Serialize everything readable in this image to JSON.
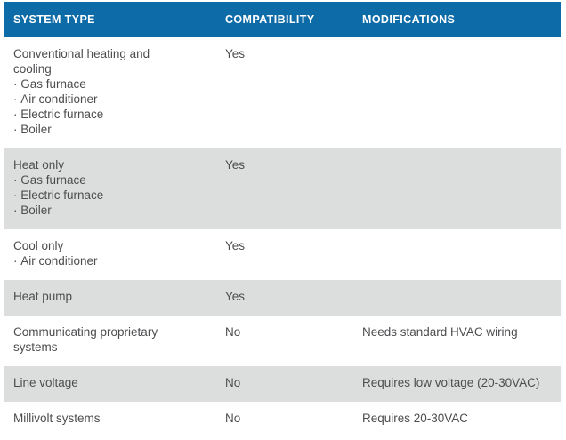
{
  "table": {
    "columns": [
      {
        "label": "SYSTEM TYPE"
      },
      {
        "label": "COMPATIBILITY"
      },
      {
        "label": "MODIFICATIONS"
      }
    ],
    "rows": [
      {
        "system": "Conventional heating and cooling",
        "items": [
          "Gas furnace",
          "Air conditioner",
          "Electric furnace",
          "Boiler"
        ],
        "compatibility": "Yes",
        "modifications": ""
      },
      {
        "system": "Heat only",
        "items": [
          "Gas furnace",
          "Electric furnace",
          "Boiler"
        ],
        "compatibility": "Yes",
        "modifications": ""
      },
      {
        "system": "Cool only",
        "items": [
          "Air conditioner"
        ],
        "compatibility": "Yes",
        "modifications": ""
      },
      {
        "system": "Heat pump",
        "items": [],
        "compatibility": "Yes",
        "modifications": ""
      },
      {
        "system": "Communicating proprietary systems",
        "items": [],
        "compatibility": "No",
        "modifications": "Needs standard HVAC wiring"
      },
      {
        "system": "Line voltage",
        "items": [],
        "compatibility": "No",
        "modifications": "Requires low voltage (20-30VAC)"
      },
      {
        "system": "Millivolt systems",
        "items": [],
        "compatibility": "No",
        "modifications": "Requires 20-30VAC"
      }
    ],
    "colors": {
      "header_bg": "#0d6ba8",
      "header_text": "#ffffff",
      "row_bg": "#ffffff",
      "row_alt_bg": "#dcdedd",
      "body_text": "#4c4d4f"
    }
  }
}
